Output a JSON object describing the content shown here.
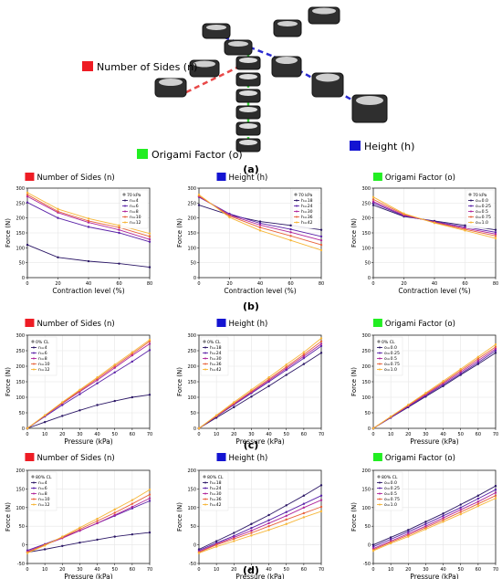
{
  "panel_a": {
    "label": "(a)",
    "callouts": [
      {
        "text": "Number of Sides (n)",
        "color": "#ee1c24"
      },
      {
        "text": "Origami Factor (o)",
        "color": "#22ee22"
      },
      {
        "text": "Height (h)",
        "color": "#1414d2"
      }
    ]
  },
  "panel_labels": [
    "(b)",
    "(c)",
    "(d)"
  ],
  "headers": [
    {
      "text": "Number of Sides (n)",
      "color": "#ee1c24"
    },
    {
      "text": "Height (h)",
      "color": "#1414d2"
    },
    {
      "text": "Origami Factor (o)",
      "color": "#22ee22"
    }
  ],
  "palette": [
    "#2b1766",
    "#5a22a8",
    "#b0259b",
    "#e8623a",
    "#f6b638"
  ],
  "chart_data": [
    {
      "id": "b1",
      "type": "line",
      "legend_title": "70 kPa",
      "labels": [
        "n=4",
        "n=6",
        "n=8",
        "n=10",
        "n=12"
      ],
      "xlabel": "Contraction level (%)",
      "ylabel": "Force (N)",
      "x": [
        0,
        20,
        40,
        60,
        80
      ],
      "xlim": [
        0,
        80
      ],
      "xticks": [
        0,
        20,
        40,
        60,
        80
      ],
      "ylim": [
        0,
        300
      ],
      "yticks": [
        0,
        50,
        100,
        150,
        200,
        250,
        300
      ],
      "series": [
        {
          "values": [
            110,
            68,
            55,
            47,
            35
          ]
        },
        {
          "values": [
            252,
            200,
            170,
            150,
            120
          ]
        },
        {
          "values": [
            272,
            218,
            185,
            160,
            128
          ]
        },
        {
          "values": [
            278,
            222,
            190,
            168,
            138
          ]
        },
        {
          "values": [
            285,
            230,
            198,
            175,
            148
          ]
        }
      ]
    },
    {
      "id": "b2",
      "type": "line",
      "legend_title": "70 kPa",
      "labels": [
        "h=18",
        "h=24",
        "h=30",
        "h=36",
        "h=42"
      ],
      "xlabel": "Contraction level (%)",
      "ylabel": "Force (N)",
      "x": [
        0,
        20,
        40,
        60,
        80
      ],
      "xlim": [
        0,
        80
      ],
      "xticks": [
        0,
        20,
        40,
        60,
        80
      ],
      "ylim": [
        0,
        300
      ],
      "yticks": [
        0,
        50,
        100,
        150,
        200,
        250,
        300
      ],
      "series": [
        {
          "values": [
            243,
            210,
            188,
            175,
            160
          ]
        },
        {
          "values": [
            270,
            214,
            182,
            162,
            138
          ]
        },
        {
          "values": [
            272,
            210,
            176,
            152,
            125
          ]
        },
        {
          "values": [
            274,
            207,
            168,
            140,
            110
          ]
        },
        {
          "values": [
            278,
            202,
            158,
            125,
            92
          ]
        }
      ]
    },
    {
      "id": "b3",
      "type": "line",
      "legend_title": "70 kPa",
      "labels": [
        "o=0.0",
        "o=0.25",
        "o=0.5",
        "o=0.75",
        "o=1.0"
      ],
      "xlabel": "Contraction level (%)",
      "ylabel": "Force (N)",
      "x": [
        0,
        20,
        40,
        60,
        80
      ],
      "xlim": [
        0,
        80
      ],
      "xticks": [
        0,
        20,
        40,
        60,
        80
      ],
      "ylim": [
        0,
        300
      ],
      "yticks": [
        0,
        50,
        100,
        150,
        200,
        250,
        300
      ],
      "series": [
        {
          "values": [
            243,
            205,
            190,
            175,
            160
          ]
        },
        {
          "values": [
            250,
            207,
            188,
            170,
            152
          ]
        },
        {
          "values": [
            255,
            209,
            186,
            166,
            146
          ]
        },
        {
          "values": [
            262,
            212,
            185,
            162,
            140
          ]
        },
        {
          "values": [
            270,
            215,
            183,
            158,
            132
          ]
        }
      ]
    },
    {
      "id": "c1",
      "type": "line",
      "legend_title": "0% CL",
      "labels": [
        "n=4",
        "n=6",
        "n=8",
        "n=10",
        "n=12"
      ],
      "xlabel": "Pressure (kPa)",
      "ylabel": "Force (N)",
      "x": [
        0,
        10,
        20,
        30,
        40,
        50,
        60,
        70
      ],
      "xlim": [
        0,
        70
      ],
      "xticks": [
        0,
        10,
        20,
        30,
        40,
        50,
        60,
        70
      ],
      "ylim": [
        0,
        300
      ],
      "yticks": [
        0,
        50,
        100,
        150,
        200,
        250,
        300
      ],
      "series": [
        {
          "values": [
            0,
            20,
            40,
            58,
            75,
            88,
            100,
            108
          ]
        },
        {
          "values": [
            0,
            38,
            75,
            110,
            145,
            180,
            215,
            252
          ]
        },
        {
          "values": [
            0,
            40,
            80,
            118,
            155,
            195,
            235,
            272
          ]
        },
        {
          "values": [
            0,
            41,
            82,
            121,
            160,
            200,
            240,
            280
          ]
        },
        {
          "values": [
            0,
            42,
            84,
            124,
            164,
            205,
            245,
            285
          ]
        }
      ]
    },
    {
      "id": "c2",
      "type": "line",
      "legend_title": "0% CL",
      "labels": [
        "h=18",
        "h=24",
        "h=30",
        "h=36",
        "h=42"
      ],
      "xlabel": "Pressure (kPa)",
      "ylabel": "Force (N)",
      "x": [
        0,
        10,
        20,
        30,
        40,
        50,
        60,
        70
      ],
      "xlim": [
        0,
        70
      ],
      "xticks": [
        0,
        10,
        20,
        30,
        40,
        50,
        60,
        70
      ],
      "ylim": [
        0,
        300
      ],
      "yticks": [
        0,
        50,
        100,
        150,
        200,
        250,
        300
      ],
      "series": [
        {
          "values": [
            0,
            34,
            68,
            102,
            136,
            172,
            207,
            243
          ]
        },
        {
          "values": [
            0,
            38,
            76,
            113,
            150,
            188,
            226,
            265
          ]
        },
        {
          "values": [
            0,
            39,
            78,
            116,
            154,
            193,
            232,
            272
          ]
        },
        {
          "values": [
            0,
            40,
            80,
            119,
            158,
            198,
            238,
            280
          ]
        },
        {
          "values": [
            0,
            42,
            84,
            124,
            164,
            205,
            245,
            290
          ]
        }
      ]
    },
    {
      "id": "c3",
      "type": "line",
      "legend_title": "0% CL",
      "labels": [
        "o=0.0",
        "o=0.25",
        "o=0.5",
        "o=0.75",
        "o=1.0"
      ],
      "xlabel": "Pressure (kPa)",
      "ylabel": "Force (N)",
      "x": [
        0,
        10,
        20,
        30,
        40,
        50,
        60,
        70
      ],
      "xlim": [
        0,
        70
      ],
      "xticks": [
        0,
        10,
        20,
        30,
        40,
        50,
        60,
        70
      ],
      "ylim": [
        0,
        300
      ],
      "yticks": [
        0,
        50,
        100,
        150,
        200,
        250,
        300
      ],
      "series": [
        {
          "values": [
            0,
            34,
            68,
            102,
            136,
            172,
            207,
            243
          ]
        },
        {
          "values": [
            0,
            35,
            70,
            105,
            140,
            176,
            212,
            250
          ]
        },
        {
          "values": [
            0,
            36,
            72,
            108,
            144,
            181,
            218,
            256
          ]
        },
        {
          "values": [
            0,
            37,
            74,
            111,
            148,
            186,
            224,
            262
          ]
        },
        {
          "values": [
            0,
            38,
            76,
            114,
            152,
            191,
            230,
            270
          ]
        }
      ]
    },
    {
      "id": "d1",
      "type": "line",
      "legend_title": "80% CL",
      "labels": [
        "n=4",
        "n=6",
        "n=8",
        "n=10",
        "n=12"
      ],
      "xlabel": "Pressure (kPa)",
      "ylabel": "Force (N)",
      "x": [
        0,
        10,
        20,
        30,
        40,
        50,
        60,
        70
      ],
      "xlim": [
        0,
        70
      ],
      "xticks": [
        0,
        10,
        20,
        30,
        40,
        50,
        60,
        70
      ],
      "ylim": [
        -50,
        200
      ],
      "yticks": [
        -50,
        0,
        50,
        100,
        150,
        200
      ],
      "series": [
        {
          "values": [
            -20,
            -12,
            -3,
            6,
            14,
            22,
            28,
            33
          ]
        },
        {
          "values": [
            -15,
            2,
            20,
            38,
            58,
            78,
            98,
            118
          ]
        },
        {
          "values": [
            -18,
            0,
            18,
            38,
            58,
            80,
            102,
            125
          ]
        },
        {
          "values": [
            -20,
            0,
            20,
            42,
            64,
            86,
            110,
            135
          ]
        },
        {
          "values": [
            -22,
            -2,
            22,
            46,
            70,
            95,
            120,
            148
          ]
        }
      ]
    },
    {
      "id": "d2",
      "type": "line",
      "legend_title": "80% CL",
      "labels": [
        "h=18",
        "h=24",
        "h=30",
        "h=36",
        "h=42"
      ],
      "xlabel": "Pressure (kPa)",
      "ylabel": "Force (N)",
      "x": [
        0,
        10,
        20,
        30,
        40,
        50,
        60,
        70
      ],
      "xlim": [
        0,
        70
      ],
      "xticks": [
        0,
        10,
        20,
        30,
        40,
        50,
        60,
        70
      ],
      "ylim": [
        -50,
        200
      ],
      "yticks": [
        -50,
        0,
        50,
        100,
        150,
        200
      ],
      "series": [
        {
          "values": [
            -12,
            10,
            32,
            56,
            80,
            106,
            132,
            160
          ]
        },
        {
          "values": [
            -15,
            5,
            24,
            45,
            66,
            88,
            110,
            132
          ]
        },
        {
          "values": [
            -18,
            2,
            20,
            38,
            58,
            78,
            100,
            120
          ]
        },
        {
          "values": [
            -20,
            0,
            16,
            32,
            50,
            68,
            85,
            102
          ]
        },
        {
          "values": [
            -22,
            -5,
            10,
            25,
            40,
            56,
            74,
            90
          ]
        }
      ]
    },
    {
      "id": "d3",
      "type": "line",
      "legend_title": "80% CL",
      "labels": [
        "o=0.0",
        "o=0.25",
        "o=0.5",
        "o=0.75",
        "o=1.0"
      ],
      "xlabel": "Pressure (kPa)",
      "ylabel": "Force (N)",
      "x": [
        0,
        10,
        20,
        30,
        40,
        50,
        60,
        70
      ],
      "xlim": [
        0,
        70
      ],
      "xticks": [
        0,
        10,
        20,
        30,
        40,
        50,
        60,
        70
      ],
      "ylim": [
        -50,
        200
      ],
      "yticks": [
        -50,
        0,
        50,
        100,
        150,
        200
      ],
      "series": [
        {
          "values": [
            0,
            20,
            40,
            62,
            84,
            108,
            132,
            158
          ]
        },
        {
          "values": [
            -5,
            15,
            35,
            56,
            78,
            100,
            124,
            148
          ]
        },
        {
          "values": [
            -10,
            10,
            30,
            50,
            72,
            94,
            116,
            140
          ]
        },
        {
          "values": [
            -13,
            7,
            26,
            46,
            67,
            88,
            110,
            132
          ]
        },
        {
          "values": [
            -16,
            4,
            22,
            42,
            62,
            82,
            104,
            125
          ]
        }
      ]
    }
  ]
}
